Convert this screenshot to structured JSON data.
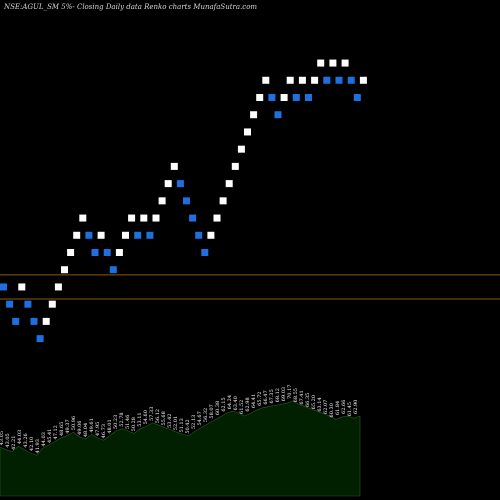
{
  "chart_data": {
    "type": "renko",
    "caption": "NSE:AGUL_SM 5%-  Closing Daily data Renko  charts MunafaSutra.com",
    "reference_lines": [
      0.7,
      -0.7
    ],
    "y_range": [
      -2.5,
      15.5
    ],
    "bricks": [
      {
        "level": 0,
        "dir": "down"
      },
      {
        "level": -1,
        "dir": "down"
      },
      {
        "level": -2,
        "dir": "down"
      },
      {
        "level": 0,
        "dir": "up"
      },
      {
        "level": -1,
        "dir": "down"
      },
      {
        "level": -2,
        "dir": "down"
      },
      {
        "level": -3,
        "dir": "down"
      },
      {
        "level": -2,
        "dir": "up"
      },
      {
        "level": -1,
        "dir": "up"
      },
      {
        "level": 0,
        "dir": "up"
      },
      {
        "level": 1,
        "dir": "up"
      },
      {
        "level": 2,
        "dir": "up"
      },
      {
        "level": 3,
        "dir": "up"
      },
      {
        "level": 4,
        "dir": "up"
      },
      {
        "level": 3,
        "dir": "down"
      },
      {
        "level": 2,
        "dir": "down"
      },
      {
        "level": 3,
        "dir": "up"
      },
      {
        "level": 2,
        "dir": "down"
      },
      {
        "level": 1,
        "dir": "down"
      },
      {
        "level": 2,
        "dir": "up"
      },
      {
        "level": 3,
        "dir": "up"
      },
      {
        "level": 4,
        "dir": "up"
      },
      {
        "level": 3,
        "dir": "down"
      },
      {
        "level": 4,
        "dir": "up"
      },
      {
        "level": 3,
        "dir": "down"
      },
      {
        "level": 4,
        "dir": "up"
      },
      {
        "level": 5,
        "dir": "up"
      },
      {
        "level": 6,
        "dir": "up"
      },
      {
        "level": 7,
        "dir": "up"
      },
      {
        "level": 6,
        "dir": "down"
      },
      {
        "level": 5,
        "dir": "down"
      },
      {
        "level": 4,
        "dir": "down"
      },
      {
        "level": 3,
        "dir": "down"
      },
      {
        "level": 2,
        "dir": "down"
      },
      {
        "level": 3,
        "dir": "up"
      },
      {
        "level": 4,
        "dir": "up"
      },
      {
        "level": 5,
        "dir": "up"
      },
      {
        "level": 6,
        "dir": "up"
      },
      {
        "level": 7,
        "dir": "up"
      },
      {
        "level": 8,
        "dir": "up"
      },
      {
        "level": 9,
        "dir": "up"
      },
      {
        "level": 10,
        "dir": "up"
      },
      {
        "level": 11,
        "dir": "up"
      },
      {
        "level": 12,
        "dir": "up"
      },
      {
        "level": 11,
        "dir": "down"
      },
      {
        "level": 10,
        "dir": "down"
      },
      {
        "level": 11,
        "dir": "up"
      },
      {
        "level": 12,
        "dir": "up"
      },
      {
        "level": 11,
        "dir": "down"
      },
      {
        "level": 12,
        "dir": "up"
      },
      {
        "level": 11,
        "dir": "down"
      },
      {
        "level": 12,
        "dir": "up"
      },
      {
        "level": 13,
        "dir": "up"
      },
      {
        "level": 12,
        "dir": "down"
      },
      {
        "level": 13,
        "dir": "up"
      },
      {
        "level": 12,
        "dir": "down"
      },
      {
        "level": 13,
        "dir": "up"
      },
      {
        "level": 12,
        "dir": "down"
      },
      {
        "level": 11,
        "dir": "down"
      },
      {
        "level": 12,
        "dir": "up"
      }
    ],
    "volume_labels": [
      "43.05",
      "43.05",
      "42.21",
      "44.03",
      "43.26",
      "42.10",
      "41.93",
      "44.03",
      "45.41",
      "47.12",
      "48.65",
      "49.37",
      "50.96",
      "49.06",
      "48.04",
      "49.61",
      "47.95",
      "46.73",
      "48.01",
      "50.23",
      "52.78",
      "51.46",
      "50.28",
      "53.11",
      "54.60",
      "57.33",
      "56.12",
      "55.68",
      "53.42",
      "52.01",
      "51.13",
      "50.42",
      "52.13",
      "54.67",
      "56.32",
      "58.07",
      "60.38",
      "62.15",
      "64.24",
      "63.40",
      "61.52",
      "62.98",
      "64.41",
      "65.72",
      "66.47",
      "67.35",
      "68.12",
      "69.03",
      "70.17",
      "68.55",
      "67.41",
      "66.35",
      "65.20",
      "63.14",
      "62.07",
      "60.30",
      "61.84",
      "62.66",
      "61.45",
      "62.90"
    ],
    "volume_profile": [
      42,
      40,
      38,
      43,
      40,
      37,
      35,
      41,
      44,
      47,
      50,
      52,
      55,
      51,
      49,
      53,
      50,
      48,
      52,
      56,
      58,
      56,
      54,
      58,
      60,
      63,
      61,
      59,
      57,
      55,
      53,
      52,
      56,
      59,
      62,
      65,
      68,
      71,
      73,
      72,
      69,
      71,
      74,
      76,
      77,
      78,
      79,
      80,
      82,
      79,
      77,
      75,
      73,
      71,
      69,
      66,
      68,
      69,
      67,
      69
    ]
  },
  "colors": {
    "background": "#000000",
    "up_brick": "#ffffff",
    "down_brick": "#1e6fe0",
    "reference_line": "#8a5a10",
    "volume_fill": "#002000",
    "volume_stroke": "#2a5a2a",
    "caption_text": "#d8d8d8",
    "volume_text": "#ffffff"
  }
}
